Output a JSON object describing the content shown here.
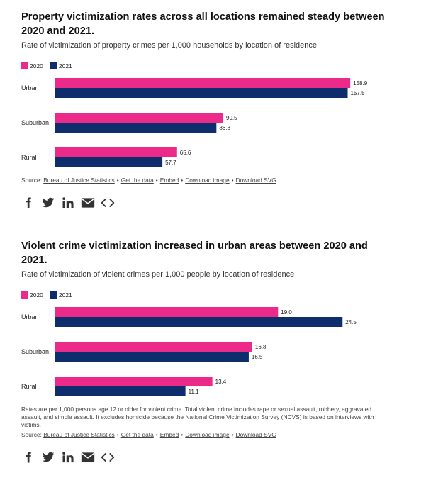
{
  "colors": {
    "y2020": "#ec2a8a",
    "y2021": "#0d2d6c"
  },
  "source_prefix": "Source:",
  "source_links": [
    "Bureau of Justice Statistics",
    "Get the data",
    "Embed",
    "Download image",
    "Download SVG"
  ],
  "share_icons": [
    "facebook-icon",
    "twitter-icon",
    "linkedin-icon",
    "email-icon",
    "embed-code-icon"
  ],
  "charts": [
    {
      "title": "Property victimization rates across all locations remained steady between 2020 and 2021.",
      "subtitle": "Rate of victimization of property crimes per 1,000 households by location of residence",
      "note": ""
    },
    {
      "title": "Violent crime victimization increased in urban areas between 2020 and 2021.",
      "subtitle": "Rate of victimization of violent crimes per 1,000 people by location of residence",
      "note": "Rates are per 1,000 persons age 12 or older for violent crime. Total violent crime includes rape or sexual assault, robbery, aggravated assault, and simple assault. It excludes homicide because the National Crime Victimization Survey (NCVS) is based on interviews with victims."
    }
  ],
  "chart_data": [
    {
      "type": "bar",
      "orientation": "horizontal",
      "title": "Property victimization rates across all locations remained steady between 2020 and 2021.",
      "subtitle": "Rate of victimization of property crimes per 1,000 households by location of residence",
      "categories": [
        "Urban",
        "Suburban",
        "Rural"
      ],
      "series": [
        {
          "name": "2020",
          "values": [
            158.9,
            90.5,
            65.6
          ],
          "labels": [
            "158.9",
            "90.5",
            "65.6"
          ]
        },
        {
          "name": "2021",
          "values": [
            157.5,
            86.8,
            57.7
          ],
          "labels": [
            "157.5",
            "86.8",
            "57.7"
          ]
        }
      ],
      "xlim": [
        0,
        168
      ],
      "grid": false,
      "legend": "top-left"
    },
    {
      "type": "bar",
      "orientation": "horizontal",
      "title": "Violent crime victimization increased in urban areas between 2020 and 2021.",
      "subtitle": "Rate of victimization of violent crimes per 1,000 people by location of residence",
      "categories": [
        "Urban",
        "Suburban",
        "Rural"
      ],
      "series": [
        {
          "name": "2020",
          "values": [
            19.0,
            16.8,
            13.4
          ],
          "labels": [
            "19.0",
            "16.8",
            "13.4"
          ]
        },
        {
          "name": "2021",
          "values": [
            24.5,
            16.5,
            11.1
          ],
          "labels": [
            "24.5",
            "16.5",
            "11.1"
          ]
        }
      ],
      "xlim": [
        0,
        26.6
      ],
      "grid": false,
      "legend": "top-left"
    }
  ]
}
